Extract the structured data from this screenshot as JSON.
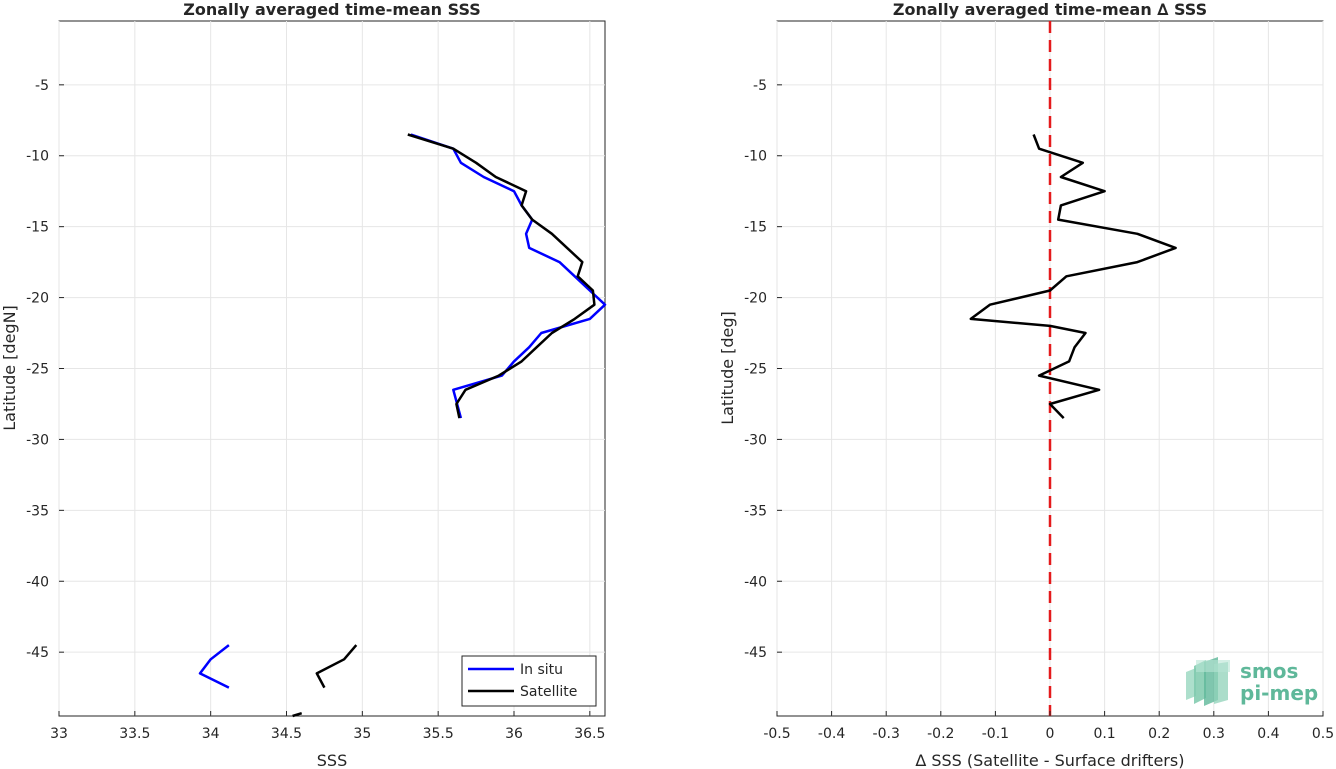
{
  "chart_data": [
    {
      "type": "line",
      "title": "Zonally averaged time-mean SSS",
      "xlabel": "SSS",
      "ylabel": "Latitude [degN]",
      "xlim": [
        33,
        36.6
      ],
      "ylim": [
        -49.5,
        -0.5
      ],
      "xticks": [
        33,
        33.5,
        34,
        34.5,
        35,
        35.5,
        36,
        36.5
      ],
      "xtick_labels": [
        "33",
        "33.5",
        "34",
        "34.5",
        "35",
        "35.5",
        "36",
        "36.5"
      ],
      "yticks": [
        -5,
        -10,
        -15,
        -20,
        -25,
        -30,
        -35,
        -40,
        -45
      ],
      "ytick_labels": [
        "-5",
        "-10",
        "-15",
        "-20",
        "-25",
        "-30",
        "-35",
        "-40",
        "-45"
      ],
      "grid": true,
      "legend_position": "bottom-right",
      "series": [
        {
          "name": "In situ",
          "color": "#0000ff",
          "segments": [
            [
              [
                35.32,
                -8.5
              ],
              [
                35.6,
                -9.5
              ],
              [
                35.65,
                -10.5
              ],
              [
                35.8,
                -11.5
              ],
              [
                36.0,
                -12.5
              ],
              [
                36.05,
                -13.5
              ],
              [
                36.12,
                -14.5
              ],
              [
                36.08,
                -15.5
              ],
              [
                36.1,
                -16.5
              ],
              [
                36.3,
                -17.5
              ],
              [
                36.4,
                -18.5
              ],
              [
                36.5,
                -19.5
              ],
              [
                36.6,
                -20.5
              ],
              [
                36.5,
                -21.5
              ],
              [
                36.18,
                -22.5
              ],
              [
                36.1,
                -23.5
              ],
              [
                36.0,
                -24.5
              ],
              [
                35.92,
                -25.5
              ],
              [
                35.6,
                -26.5
              ],
              [
                35.65,
                -28.5
              ]
            ],
            [
              [
                34.12,
                -44.5
              ],
              [
                34.0,
                -45.5
              ],
              [
                33.93,
                -46.5
              ],
              [
                34.12,
                -47.5
              ]
            ]
          ]
        },
        {
          "name": "Satellite",
          "color": "#000000",
          "segments": [
            [
              [
                35.3,
                -8.5
              ],
              [
                35.6,
                -9.5
              ],
              [
                35.75,
                -10.5
              ],
              [
                35.88,
                -11.5
              ],
              [
                36.08,
                -12.5
              ],
              [
                36.05,
                -13.5
              ],
              [
                36.12,
                -14.5
              ],
              [
                36.25,
                -15.5
              ],
              [
                36.35,
                -16.5
              ],
              [
                36.45,
                -17.5
              ],
              [
                36.42,
                -18.5
              ],
              [
                36.52,
                -19.5
              ],
              [
                36.53,
                -20.5
              ],
              [
                36.4,
                -21.5
              ],
              [
                36.25,
                -22.5
              ],
              [
                36.15,
                -23.5
              ],
              [
                36.05,
                -24.5
              ],
              [
                35.9,
                -25.5
              ],
              [
                35.68,
                -26.5
              ],
              [
                35.62,
                -27.5
              ],
              [
                35.64,
                -28.5
              ]
            ],
            [
              [
                34.96,
                -44.5
              ],
              [
                34.88,
                -45.5
              ],
              [
                34.7,
                -46.5
              ],
              [
                34.75,
                -47.5
              ]
            ],
            [
              [
                34.6,
                -49.3
              ],
              [
                34.54,
                -49.5
              ]
            ]
          ]
        }
      ]
    },
    {
      "type": "line",
      "title": "Zonally averaged time-mean ∆ SSS",
      "xlabel": "∆ SSS (Satellite - Surface drifters)",
      "ylabel": "Latitude [deg]",
      "xlim": [
        -0.5,
        0.5
      ],
      "ylim": [
        -49.5,
        -0.5
      ],
      "xticks": [
        -0.5,
        -0.4,
        -0.3,
        -0.2,
        -0.1,
        0,
        0.1,
        0.2,
        0.3,
        0.4,
        0.5
      ],
      "xtick_labels": [
        "-0.5",
        "-0.4",
        "-0.3",
        "-0.2",
        "-0.1",
        "0",
        "0.1",
        "0.2",
        "0.3",
        "0.4",
        "0.5"
      ],
      "yticks": [
        -5,
        -10,
        -15,
        -20,
        -25,
        -30,
        -35,
        -40,
        -45
      ],
      "ytick_labels": [
        "-5",
        "-10",
        "-15",
        "-20",
        "-25",
        "-30",
        "-35",
        "-40",
        "-45"
      ],
      "grid": true,
      "reference_line": {
        "x": 0,
        "color": "#e41a1c",
        "style": "dashed"
      },
      "series": [
        {
          "color": "#000000",
          "segments": [
            [
              [
                -0.03,
                -8.5
              ],
              [
                -0.02,
                -9.5
              ],
              [
                0.06,
                -10.5
              ],
              [
                0.02,
                -11.5
              ],
              [
                0.1,
                -12.5
              ],
              [
                0.02,
                -13.5
              ],
              [
                0.015,
                -14.5
              ],
              [
                0.16,
                -15.5
              ],
              [
                0.23,
                -16.5
              ],
              [
                0.16,
                -17.5
              ],
              [
                0.03,
                -18.5
              ],
              [
                0.0,
                -19.5
              ],
              [
                -0.11,
                -20.5
              ],
              [
                -0.145,
                -21.5
              ],
              [
                0.0,
                -22.0
              ],
              [
                0.065,
                -22.5
              ],
              [
                0.045,
                -23.5
              ],
              [
                0.035,
                -24.5
              ],
              [
                -0.02,
                -25.5
              ],
              [
                0.09,
                -26.5
              ],
              [
                0.0,
                -27.5
              ],
              [
                0.025,
                -28.5
              ]
            ]
          ]
        }
      ]
    }
  ],
  "logo": {
    "line1": "smos",
    "line2": "pi-mep"
  }
}
